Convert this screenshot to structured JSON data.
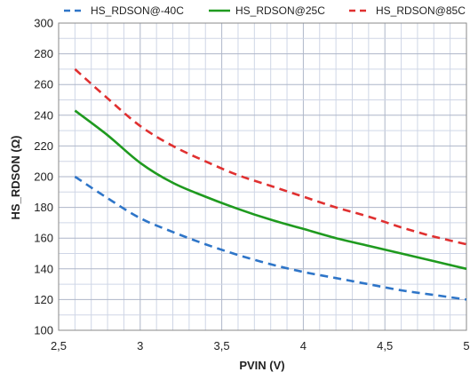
{
  "chart_data": {
    "type": "line",
    "xlabel": "PVIN (V)",
    "ylabel": "HS_RDSON (Ω)",
    "xlim": [
      2.5,
      5
    ],
    "ylim": [
      100,
      300
    ],
    "x_ticks": [
      "2,5",
      "3",
      "3,5",
      "4",
      "4,5",
      "5"
    ],
    "y_ticks": [
      "100",
      "120",
      "140",
      "160",
      "180",
      "200",
      "220",
      "240",
      "260",
      "280",
      "300"
    ],
    "grid": true,
    "legend_position": "top",
    "x": [
      2.6,
      2.8,
      3.0,
      3.2,
      3.4,
      3.6,
      3.8,
      4.0,
      4.2,
      4.4,
      4.6,
      4.8,
      5.0
    ],
    "series": [
      {
        "name": "HS_RDSON@-40C",
        "color": "#2e75c8",
        "dash": "dashed",
        "values": [
          200,
          186,
          173,
          164,
          156,
          149,
          143,
          138,
          134,
          130,
          126,
          123,
          120
        ]
      },
      {
        "name": "HS_RDSON@25C",
        "color": "#1f9a1f",
        "dash": "solid",
        "values": [
          243,
          227,
          209,
          196,
          187,
          179,
          172,
          166,
          160,
          155,
          150,
          145,
          140
        ]
      },
      {
        "name": "HS_RDSON@85C",
        "color": "#e03030",
        "dash": "dashed",
        "values": [
          270,
          251,
          233,
          220,
          210,
          201,
          194,
          187,
          180,
          174,
          167,
          161,
          156
        ]
      }
    ]
  }
}
